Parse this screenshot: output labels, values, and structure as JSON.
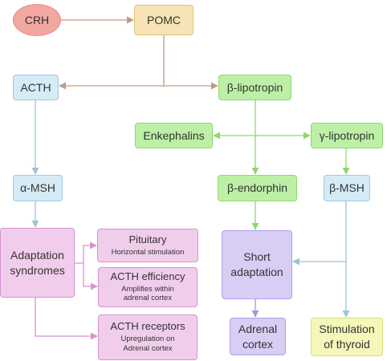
{
  "nodes": {
    "crh": "CRH",
    "pomc": "POMC",
    "acth": "ACTH",
    "beta_lipotropin": "β-lipotropin",
    "enkephalins": "Enkephalins",
    "gamma_lipotropin": "γ-lipotropin",
    "alpha_msh": "α-MSH",
    "beta_endorphin": "β-endorphin",
    "beta_msh": "β-MSH",
    "adaptation": [
      "Adaptation",
      "syndromes"
    ],
    "pituitary": {
      "title": "Pituitary",
      "detail": [
        "Horizontal stimulation"
      ]
    },
    "acth_efficiency": {
      "title": "ACTH efficiency",
      "detail": [
        "Amplifies within",
        "adrenal cortex"
      ]
    },
    "acth_receptors": {
      "title": "ACTH receptors",
      "detail": [
        "Upregulation on",
        "Adrenal cortex"
      ]
    },
    "short_adaptation": [
      "Short",
      "adaptation"
    ],
    "adrenal_cortex": [
      "Adrenal",
      "cortex"
    ],
    "thyroid": [
      "Stimulation",
      "of thyroid"
    ]
  },
  "colors": {
    "crh": "#f2a8a0",
    "pomc": "#f7e3b4",
    "acth_path": "#d6ebf6",
    "lipotropin_path": "#bdf0a6",
    "adaptation_path": "#f1cdec",
    "short_adaptation": "#d8cdf4",
    "thyroid": "#f4f7b8",
    "arrow_brown": "#c29a82",
    "arrow_blue": "#9cc3d6",
    "arrow_green": "#8fd86e",
    "arrow_pink": "#d991d2",
    "arrow_purple": "#a898d8"
  }
}
